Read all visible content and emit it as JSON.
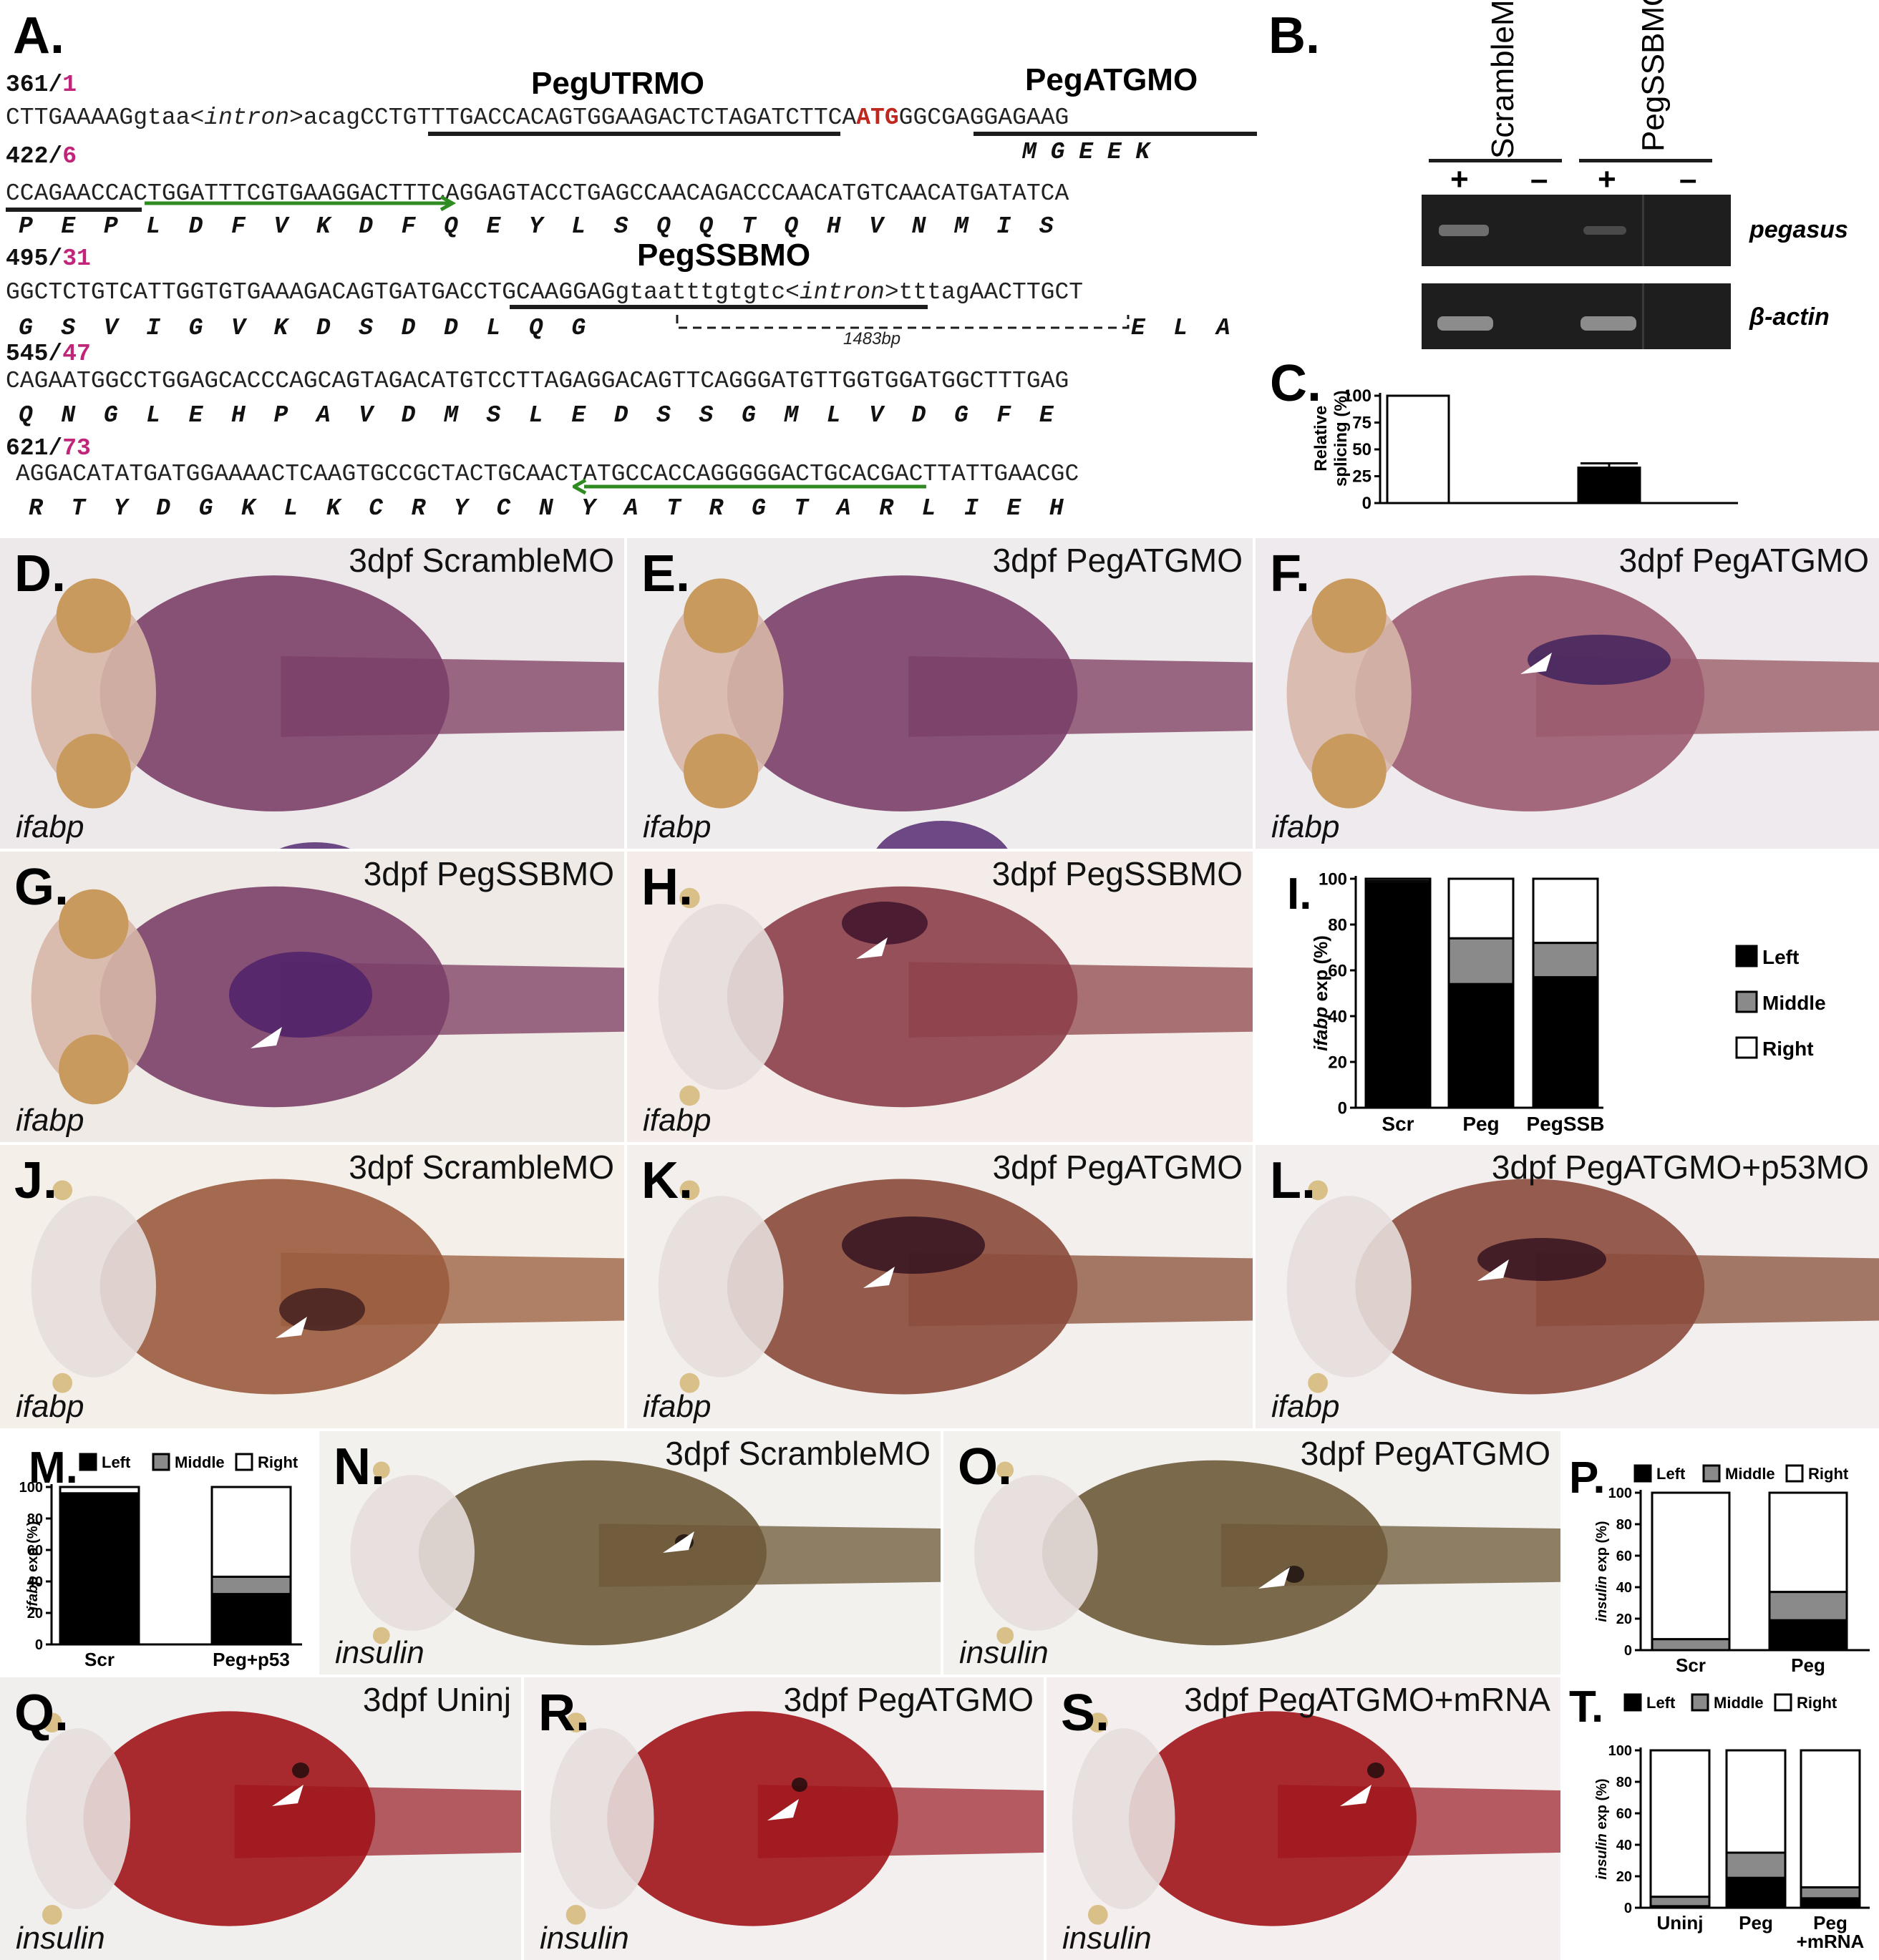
{
  "panelA": {
    "label": "A.",
    "mo_utr": "PegUTRMO",
    "mo_atg": "PegATGMO",
    "mo_ssb": "PegSSBMO",
    "pos1_main": "361/",
    "pos1_sub": "1",
    "pos2_main": "422/",
    "pos2_sub": "6",
    "pos3_main": "495/",
    "pos3_sub": "31",
    "pos4_main": "545/",
    "pos4_sub": "47",
    "pos5_main": "621/",
    "pos5_sub": "73",
    "l1_a": "CTTGAAAAG",
    "l1_b": "gtaa<",
    "l1_c": "intron",
    "l1_d": ">acag",
    "l1_e": "CCTGTTTGACCACAGTGGAAGACTCTAGATCTTCA",
    "l1_f": "ATG",
    "l1_g": "GGCGAGGAGAAG",
    "aa1": "M G E E K",
    "l2": "CCAGAACCACTGGATTTCGTGAAGGACTTTCAGGAGTACCTGAGCCAACAGACCCAACATGTCAACATGATATCA",
    "aa2": "P  E  P  L  D  F  V  K  D  F  Q  E  Y  L  S  Q  Q  T  Q  H  V  N  M  I  S",
    "l3_a": "GGCTCTGTCATTGGTGTGAAAGACAGTGATGACCTGCAAGGAGgtaatttgtgtc<",
    "l3_b": "intron",
    "l3_c": ">tttagAACTTGCT",
    "aa3a": "G  S  V  I  G  V  K  D  S  D  D  L  Q  G",
    "aa3b": "E  L  A",
    "intron_len": "1483bp",
    "l4": "CAGAATGGCCTGGAGCACCCAGCAGTAGACATGTCCTTAGAGGACAGTTCAGGGATGTTGGTGGATGGCTTTGAG",
    "aa4": "Q  N  G  L  E  H  P  A  V  D  M  S  L  E  D  S  S  G  M  L  V  D  G  F  E",
    "l5": "AGGACATATGATGGAAAACTCAAGTGCCGCTACTGCAACTATGCCACCAGGGGGACTGCACGACTTATTGAACGC",
    "aa5": "R  T  Y  D  G  K  L  K  C  R  Y  C  N  Y  A  T  R  G  T  A  R  L  I  E  H"
  },
  "panelB": {
    "label": "B.",
    "col1": "ScrambleMO",
    "col2": "PegSSBMO",
    "plus": "+",
    "minus": "–",
    "row1": "pegasus",
    "row2": "β-actin"
  },
  "panelC": {
    "label": "C.",
    "ylabel1": "Relative",
    "ylabel2": "splicing (%)",
    "ticks": [
      "100",
      "75",
      "50",
      "25",
      "0"
    ]
  },
  "photos": [
    {
      "label": "D.",
      "title": "3dpf ScrambleMO",
      "gene": "ifabp"
    },
    {
      "label": "E.",
      "title": "3dpf PegATGMO",
      "gene": "ifabp"
    },
    {
      "label": "F.",
      "title": "3dpf PegATGMO",
      "gene": "ifabp"
    },
    {
      "label": "G.",
      "title": "3dpf PegSSBMO",
      "gene": "ifabp"
    },
    {
      "label": "H.",
      "title": "3dpf PegSSBMO",
      "gene": "ifabp"
    },
    {
      "label": "J.",
      "title": "3dpf ScrambleMO",
      "gene": "ifabp"
    },
    {
      "label": "K.",
      "title": "3dpf PegATGMO",
      "gene": "ifabp"
    },
    {
      "label": "L.",
      "title": "3dpf PegATGMO+p53MO",
      "gene": "ifabp"
    },
    {
      "label": "N.",
      "title": "3dpf ScrambleMO",
      "gene": "insulin"
    },
    {
      "label": "O.",
      "title": "3dpf PegATGMO",
      "gene": "insulin"
    },
    {
      "label": "Q.",
      "title": "3dpf Uninj",
      "gene": "insulin"
    },
    {
      "label": "R.",
      "title": "3dpf PegATGMO",
      "gene": "insulin"
    },
    {
      "label": "S.",
      "title": "3dpf PegATGMO+mRNA",
      "gene": "insulin"
    }
  ],
  "chart_data": [
    {
      "panel": "C",
      "type": "bar",
      "categories": [
        "ScrambleMO",
        "PegSSBMO"
      ],
      "values": [
        100,
        33
      ],
      "error": [
        0,
        4
      ],
      "ylabel": "Relative splicing (%)",
      "ylim": [
        0,
        100
      ],
      "yticks": [
        "100",
        "75",
        "50",
        "25",
        "0"
      ],
      "colors": [
        "#ffffff",
        "#000000"
      ]
    },
    {
      "panel": "I",
      "label": "I.",
      "type": "bar",
      "stacked": true,
      "ylabel_gene": "ifabp",
      "ylabel_rest": " exp (%)",
      "ylim": [
        0,
        100
      ],
      "yticks": [
        "100",
        "80",
        "60",
        "40",
        "20",
        "0"
      ],
      "categories": [
        "Scr",
        "Peg",
        "PegSSB"
      ],
      "series": [
        {
          "name": "Left",
          "values": [
            98,
            54,
            57
          ],
          "color": "#000000"
        },
        {
          "name": "Middle",
          "values": [
            1,
            20,
            15
          ],
          "color": "#8a8a8a"
        },
        {
          "name": "Right",
          "values": [
            1,
            26,
            28
          ],
          "color": "#ffffff"
        }
      ],
      "legend": "right"
    },
    {
      "panel": "M",
      "label": "M.",
      "type": "bar",
      "stacked": true,
      "ylabel_gene": "ifabp",
      "ylabel_rest": " exp (%)",
      "ylim": [
        0,
        100
      ],
      "yticks": [
        "100",
        "80",
        "60",
        "40",
        "20",
        "0"
      ],
      "categories": [
        "Scr",
        "Peg+p53"
      ],
      "series": [
        {
          "name": "Left",
          "values": [
            95,
            32
          ],
          "color": "#000000"
        },
        {
          "name": "Middle",
          "values": [
            1,
            11
          ],
          "color": "#8a8a8a"
        },
        {
          "name": "Right",
          "values": [
            4,
            57
          ],
          "color": "#ffffff"
        }
      ],
      "legend": "top"
    },
    {
      "panel": "P",
      "label": "P.",
      "type": "bar",
      "stacked": true,
      "ylabel_gene": "insulin",
      "ylabel_rest": " exp (%)",
      "ylim": [
        0,
        100
      ],
      "yticks": [
        "100",
        "80",
        "60",
        "40",
        "20",
        "0"
      ],
      "categories": [
        "Scr",
        "Peg"
      ],
      "series": [
        {
          "name": "Left",
          "values": [
            0,
            19
          ],
          "color": "#000000"
        },
        {
          "name": "Middle",
          "values": [
            7,
            18
          ],
          "color": "#8a8a8a"
        },
        {
          "name": "Right",
          "values": [
            93,
            63
          ],
          "color": "#ffffff"
        }
      ],
      "legend": "top"
    },
    {
      "panel": "T",
      "label": "T.",
      "type": "bar",
      "stacked": true,
      "ylabel_gene": "insulin",
      "ylabel_rest": " exp (%)",
      "ylim": [
        0,
        100
      ],
      "yticks": [
        "100",
        "80",
        "60",
        "40",
        "20",
        "0"
      ],
      "categories": [
        "Uninj",
        "Peg",
        "Peg\n+mRNA"
      ],
      "series": [
        {
          "name": "Left",
          "values": [
            1,
            19,
            6
          ],
          "color": "#000000"
        },
        {
          "name": "Middle",
          "values": [
            6,
            16,
            7
          ],
          "color": "#8a8a8a"
        },
        {
          "name": "Right",
          "values": [
            93,
            65,
            87
          ],
          "color": "#ffffff"
        }
      ],
      "legend": "top"
    }
  ]
}
